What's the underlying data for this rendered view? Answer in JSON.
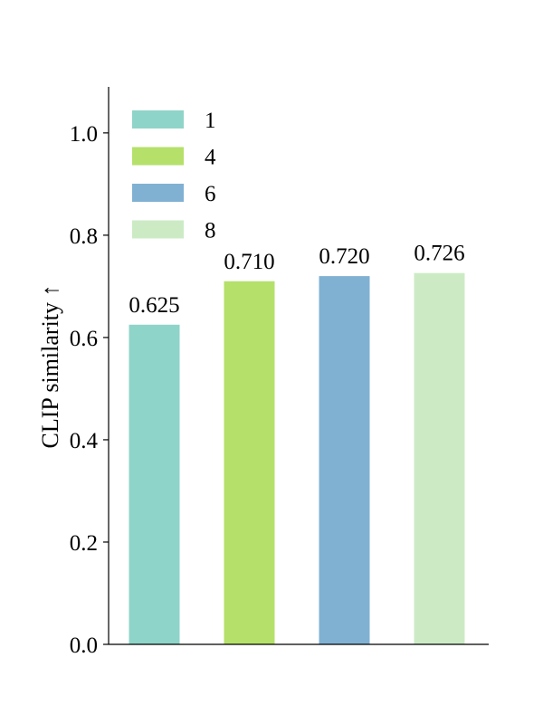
{
  "chart_data": {
    "type": "bar",
    "categories": [
      "1",
      "4",
      "6",
      "8"
    ],
    "values": [
      0.625,
      0.71,
      0.72,
      0.726
    ],
    "value_labels": [
      "0.625",
      "0.710",
      "0.720",
      "0.726"
    ],
    "title": "",
    "xlabel": "",
    "ylabel": "CLIP similarity ↑",
    "ylim": [
      0.0,
      1.09
    ],
    "yticks": [
      0.0,
      0.2,
      0.4,
      0.6,
      0.8,
      1.0
    ],
    "ytick_labels": [
      "0.0",
      "0.2",
      "0.4",
      "0.6",
      "0.8",
      "1.0"
    ],
    "colors": [
      "#8fd4c8",
      "#b5e06a",
      "#80b1d3",
      "#ccebc5"
    ],
    "grid": false,
    "legend": {
      "placement": "upper-left",
      "entries": [
        "1",
        "4",
        "6",
        "8"
      ]
    }
  }
}
